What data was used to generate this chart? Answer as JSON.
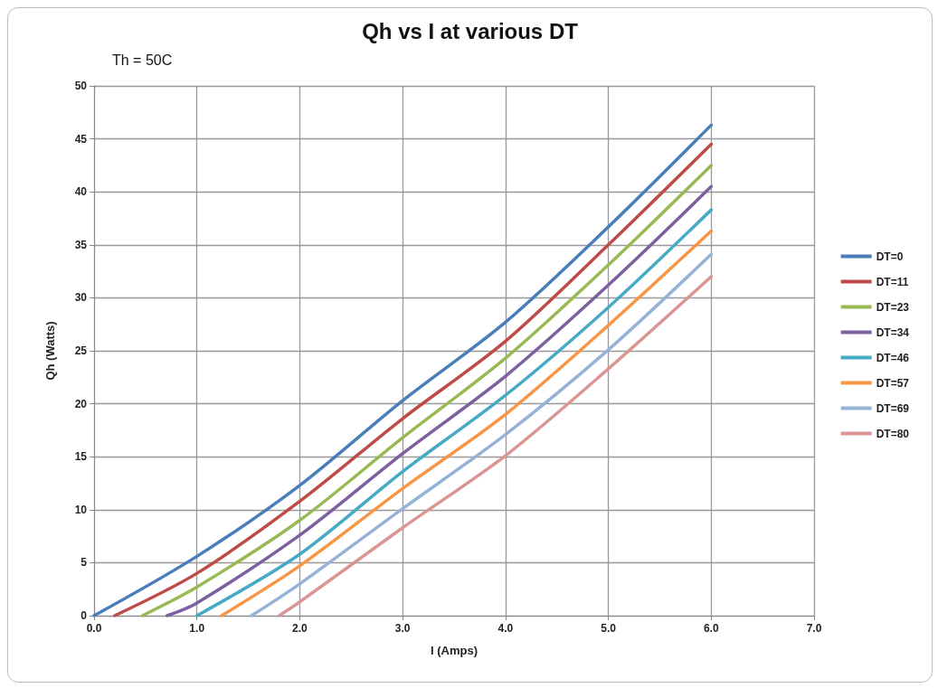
{
  "chart_data": {
    "type": "line",
    "title": "Qh vs I at various DT",
    "subtitle": "Th = 50C",
    "xlabel": "I (Amps)",
    "ylabel": "Qh (Watts)",
    "xlim": [
      0,
      7
    ],
    "xticks": [
      {
        "value": 0,
        "label": "0.0"
      },
      {
        "value": 1,
        "label": "1.0"
      },
      {
        "value": 2,
        "label": "2.0"
      },
      {
        "value": 3,
        "label": "3.0"
      },
      {
        "value": 4,
        "label": "4.0"
      },
      {
        "value": 5,
        "label": "5.0"
      },
      {
        "value": 6,
        "label": "6.0"
      },
      {
        "value": 7,
        "label": "7.0"
      }
    ],
    "ylim": [
      0,
      50
    ],
    "yticks": [
      0,
      5,
      10,
      15,
      20,
      25,
      30,
      35,
      40,
      45,
      50
    ],
    "grid": true,
    "legend": "right",
    "marker": "none",
    "line_style": "solid",
    "series": [
      {
        "name": "DT=0",
        "color": "#4a7ebb",
        "x": [
          0,
          1,
          2,
          3,
          4,
          5,
          6
        ],
        "values": [
          0,
          5.6,
          12.3,
          20.3,
          27.7,
          36.7,
          46.3
        ]
      },
      {
        "name": "DT=11",
        "color": "#be4b48",
        "x": [
          0.2,
          1,
          2,
          3,
          4,
          5,
          6
        ],
        "values": [
          0,
          4.0,
          10.8,
          18.6,
          25.9,
          35.0,
          44.5
        ]
      },
      {
        "name": "DT=23",
        "color": "#98b954",
        "x": [
          0.47,
          1,
          2,
          3,
          4,
          5,
          6
        ],
        "values": [
          0,
          2.7,
          9.0,
          16.8,
          24.3,
          33.1,
          42.5
        ]
      },
      {
        "name": "DT=34",
        "color": "#7d60a0",
        "x": [
          0.71,
          1,
          2,
          3,
          4,
          5,
          6
        ],
        "values": [
          0,
          1.2,
          7.6,
          15.3,
          22.6,
          31.2,
          40.5
        ]
      },
      {
        "name": "DT=46",
        "color": "#46aac5",
        "x": [
          1.0,
          2,
          3,
          4,
          5,
          6
        ],
        "values": [
          0,
          5.8,
          13.6,
          20.8,
          29.1,
          38.3
        ]
      },
      {
        "name": "DT=57",
        "color": "#f79646",
        "x": [
          1.24,
          2,
          3,
          4,
          5,
          6
        ],
        "values": [
          0,
          4.7,
          12.0,
          19.0,
          27.4,
          36.3
        ]
      },
      {
        "name": "DT=69",
        "color": "#95b3d7",
        "x": [
          1.53,
          2,
          3,
          4,
          5,
          6
        ],
        "values": [
          0,
          3.0,
          10.1,
          17.1,
          25.1,
          34.1
        ]
      },
      {
        "name": "DT=80",
        "color": "#d99694",
        "x": [
          1.8,
          2,
          3,
          4,
          5,
          6
        ],
        "values": [
          0,
          1.3,
          8.3,
          15.1,
          23.3,
          32.0
        ]
      }
    ]
  }
}
